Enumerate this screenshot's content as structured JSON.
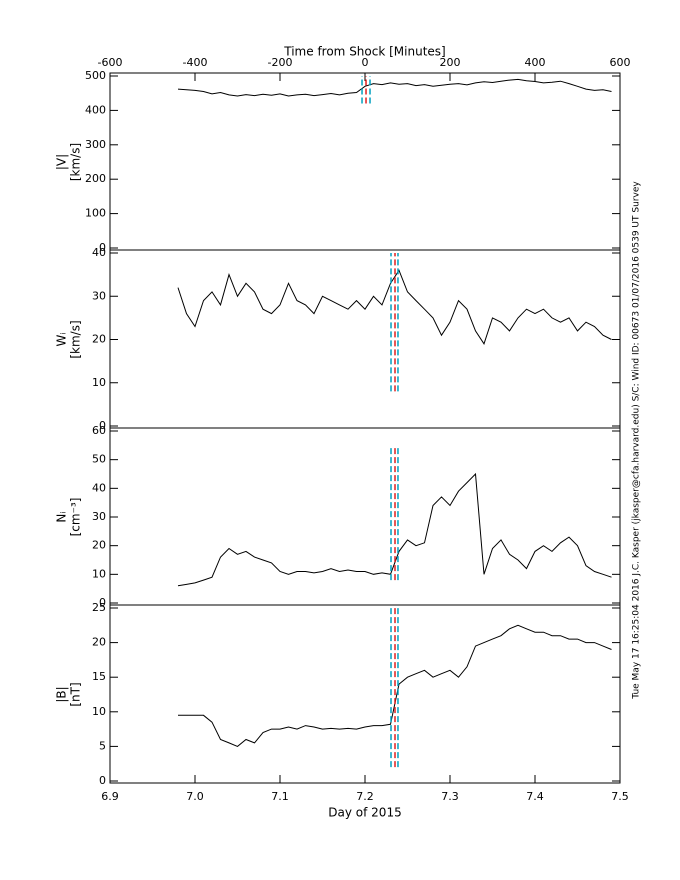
{
  "side_text": "Tue May 17 16:25:04 2016  J.C. Kasper (jkasper@cfa.harvard.edu)  S/C: Wind ID: 00673 01/07/2016  0539 UT Survey",
  "chart_data": [
    {
      "type": "line",
      "ylabel": "|V|",
      "ylabel_unit": "[km/s]",
      "color": "#000000",
      "x2label": "Time from Shock [Minutes]",
      "x2lim": [
        -600,
        600
      ],
      "x2ticks": [
        -600,
        -400,
        -200,
        0,
        200,
        400,
        600
      ],
      "ylim": [
        0,
        500
      ],
      "yticks": [
        0,
        100,
        200,
        300,
        400,
        500
      ],
      "xlim": [
        6.9,
        7.5
      ],
      "x": [
        6.98,
        6.99,
        7.0,
        7.01,
        7.02,
        7.03,
        7.04,
        7.05,
        7.06,
        7.07,
        7.08,
        7.09,
        7.1,
        7.11,
        7.12,
        7.13,
        7.14,
        7.15,
        7.16,
        7.17,
        7.18,
        7.19,
        7.2,
        7.21,
        7.22,
        7.23,
        7.24,
        7.25,
        7.26,
        7.27,
        7.28,
        7.29,
        7.3,
        7.31,
        7.32,
        7.33,
        7.34,
        7.35,
        7.36,
        7.37,
        7.38,
        7.39,
        7.4,
        7.41,
        7.42,
        7.43,
        7.44,
        7.45,
        7.46,
        7.47,
        7.48,
        7.49
      ],
      "values": [
        462,
        460,
        458,
        455,
        448,
        452,
        445,
        442,
        446,
        443,
        447,
        444,
        448,
        442,
        445,
        447,
        443,
        446,
        449,
        445,
        450,
        452,
        470,
        478,
        475,
        480,
        476,
        478,
        472,
        475,
        470,
        473,
        476,
        478,
        474,
        480,
        483,
        481,
        485,
        488,
        490,
        486,
        484,
        480,
        482,
        485,
        478,
        470,
        462,
        458,
        460,
        455
      ],
      "markers": {
        "x": [
          7.1965,
          7.2012,
          7.2059
        ],
        "colors": [
          "#00a0c0",
          "#e02020",
          "#00a0c0"
        ],
        "yrange": [
          420,
          500
        ]
      }
    },
    {
      "type": "line",
      "ylabel": "Wᵢ",
      "ylabel_unit": "[km/s]",
      "color": "#000000",
      "ylim": [
        0,
        40
      ],
      "yticks": [
        0,
        10,
        20,
        30,
        40
      ],
      "xlim": [
        6.9,
        7.5
      ],
      "x": [
        6.98,
        6.99,
        7.0,
        7.01,
        7.02,
        7.03,
        7.04,
        7.05,
        7.06,
        7.07,
        7.08,
        7.09,
        7.1,
        7.11,
        7.12,
        7.13,
        7.14,
        7.15,
        7.16,
        7.17,
        7.18,
        7.19,
        7.2,
        7.21,
        7.22,
        7.23,
        7.24,
        7.25,
        7.26,
        7.27,
        7.28,
        7.29,
        7.3,
        7.31,
        7.32,
        7.33,
        7.34,
        7.35,
        7.36,
        7.37,
        7.38,
        7.39,
        7.4,
        7.41,
        7.42,
        7.43,
        7.44,
        7.45,
        7.46,
        7.47,
        7.48,
        7.49
      ],
      "values": [
        32,
        26,
        23,
        29,
        31,
        28,
        35,
        30,
        33,
        31,
        27,
        26,
        28,
        33,
        29,
        28,
        26,
        30,
        29,
        28,
        27,
        29,
        27,
        30,
        28,
        33,
        36,
        31,
        29,
        27,
        25,
        21,
        24,
        29,
        27,
        22,
        19,
        25,
        24,
        22,
        25,
        27,
        26,
        27,
        25,
        24,
        25,
        22,
        24,
        23,
        21,
        20
      ],
      "markers": {
        "x": [
          7.2306,
          7.2353,
          7.2388
        ],
        "colors": [
          "#00a0c0",
          "#e02020",
          "#00a0c0"
        ],
        "yrange": [
          8,
          40
        ]
      }
    },
    {
      "type": "line",
      "ylabel": "Nᵢ",
      "ylabel_unit": "[cm⁻³]",
      "color": "#000000",
      "ylim": [
        0,
        60
      ],
      "yticks": [
        0,
        10,
        20,
        30,
        40,
        50,
        60
      ],
      "xlim": [
        6.9,
        7.5
      ],
      "x": [
        6.98,
        6.99,
        7.0,
        7.01,
        7.02,
        7.03,
        7.04,
        7.05,
        7.06,
        7.07,
        7.08,
        7.09,
        7.1,
        7.11,
        7.12,
        7.13,
        7.14,
        7.15,
        7.16,
        7.17,
        7.18,
        7.19,
        7.2,
        7.21,
        7.22,
        7.23,
        7.24,
        7.25,
        7.26,
        7.27,
        7.28,
        7.29,
        7.3,
        7.31,
        7.32,
        7.33,
        7.34,
        7.35,
        7.36,
        7.37,
        7.38,
        7.39,
        7.4,
        7.41,
        7.42,
        7.43,
        7.44,
        7.45,
        7.46,
        7.47,
        7.48,
        7.49
      ],
      "values": [
        6,
        6.5,
        7,
        8,
        9,
        16,
        19,
        17,
        18,
        16,
        15,
        14,
        11,
        10,
        11,
        11,
        10.5,
        11,
        12,
        11,
        11.5,
        11,
        11,
        10,
        10.5,
        10,
        18,
        22,
        20,
        21,
        34,
        37,
        34,
        39,
        42,
        45,
        10,
        19,
        22,
        17,
        15,
        12,
        18,
        20,
        18,
        21,
        23,
        20,
        13,
        11,
        10,
        9
      ],
      "markers": {
        "x": [
          7.2306,
          7.2353,
          7.2388
        ],
        "colors": [
          "#00a0c0",
          "#e02020",
          "#00a0c0"
        ],
        "yrange": [
          8,
          55
        ]
      }
    },
    {
      "type": "line",
      "ylabel": "|B|",
      "ylabel_unit": "[nT]",
      "color": "#000000",
      "ylim": [
        0,
        25
      ],
      "yticks": [
        0,
        5,
        10,
        15,
        20,
        25
      ],
      "xlim": [
        6.9,
        7.5
      ],
      "xlabel": "Day of 2015",
      "xticks": [
        6.9,
        {
          "value": 7,
          "label": "7.0"
        },
        7.1,
        7.2,
        7.3,
        7.4,
        7.5
      ],
      "x": [
        6.98,
        6.99,
        7.0,
        7.01,
        7.02,
        7.03,
        7.04,
        7.05,
        7.06,
        7.07,
        7.08,
        7.09,
        7.1,
        7.11,
        7.12,
        7.13,
        7.14,
        7.15,
        7.16,
        7.17,
        7.18,
        7.19,
        7.2,
        7.21,
        7.22,
        7.23,
        7.24,
        7.25,
        7.26,
        7.27,
        7.28,
        7.29,
        7.3,
        7.31,
        7.32,
        7.33,
        7.34,
        7.35,
        7.36,
        7.37,
        7.38,
        7.39,
        7.4,
        7.41,
        7.42,
        7.43,
        7.44,
        7.45,
        7.46,
        7.47,
        7.48,
        7.49
      ],
      "values": [
        9.5,
        9.5,
        9.5,
        9.5,
        8.5,
        6,
        5.5,
        5,
        6,
        5.5,
        7,
        7.5,
        7.5,
        7.8,
        7.5,
        8,
        7.8,
        7.5,
        7.6,
        7.5,
        7.6,
        7.5,
        7.8,
        8,
        8,
        8.2,
        14,
        15,
        15.5,
        16,
        15,
        15.5,
        16,
        15,
        16.5,
        19.5,
        20,
        20.5,
        21,
        22,
        22.5,
        22,
        21.5,
        21.5,
        21,
        21,
        20.5,
        20.5,
        20,
        20,
        19.5,
        19
      ],
      "markers": {
        "x": [
          7.2306,
          7.2353,
          7.2388
        ],
        "colors": [
          "#00a0c0",
          "#e02020",
          "#00a0c0"
        ],
        "yrange": [
          2,
          25
        ]
      }
    }
  ]
}
